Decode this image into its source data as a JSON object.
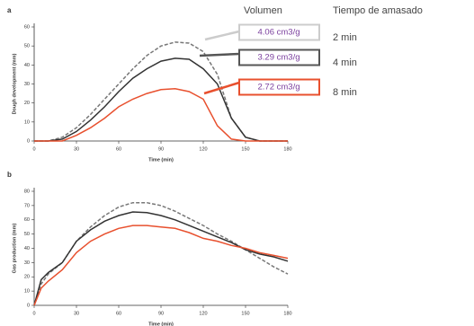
{
  "chart_data": [
    {
      "type": "line",
      "panel_label": "a",
      "y_label": "Dough development (mm)",
      "x_label": "Time (min)",
      "x": [
        0,
        5,
        10,
        20,
        30,
        40,
        50,
        60,
        70,
        80,
        90,
        100,
        110,
        120,
        130,
        140,
        150,
        160,
        170,
        180
      ],
      "xlim": [
        0,
        180
      ],
      "xticks": [
        0,
        30,
        60,
        90,
        120,
        150,
        180
      ],
      "ylim": [
        0,
        60
      ],
      "yticks": [
        0,
        10,
        20,
        30,
        40,
        50,
        60
      ],
      "series": [
        {
          "color": "#777777",
          "dashed": true,
          "values": [
            0,
            0,
            0,
            2,
            7,
            14,
            22,
            30,
            38,
            45,
            50,
            52,
            51.5,
            47,
            35,
            12,
            2,
            0,
            0,
            0
          ]
        },
        {
          "color": "#333333",
          "dashed": false,
          "values": [
            0,
            0,
            0,
            1,
            5,
            11,
            18,
            26,
            33,
            38,
            42,
            43.5,
            43,
            38,
            30,
            12,
            2,
            0,
            0,
            0
          ]
        },
        {
          "color": "#e8502e",
          "dashed": false,
          "values": [
            0,
            0,
            0,
            0,
            3,
            7,
            12,
            18,
            22,
            25,
            27,
            27.5,
            26,
            22,
            8,
            1,
            0,
            0,
            0,
            0
          ]
        }
      ]
    },
    {
      "type": "line",
      "panel_label": "b",
      "y_label": "Gas production (mm)",
      "x_label": "Time (min)",
      "x": [
        0,
        5,
        10,
        20,
        30,
        40,
        50,
        60,
        70,
        80,
        90,
        100,
        110,
        120,
        130,
        140,
        150,
        160,
        170,
        180
      ],
      "xlim": [
        0,
        180
      ],
      "xticks": [
        0,
        30,
        60,
        90,
        120,
        150,
        180
      ],
      "ylim": [
        0,
        80
      ],
      "yticks": [
        0,
        10,
        20,
        30,
        40,
        50,
        60,
        70,
        80
      ],
      "series": [
        {
          "color": "#777777",
          "dashed": true,
          "values": [
            0,
            15,
            22,
            30,
            45,
            55,
            63,
            69,
            72,
            72,
            70,
            66,
            61,
            56,
            50,
            45,
            39,
            33,
            27,
            22
          ]
        },
        {
          "color": "#333333",
          "dashed": false,
          "values": [
            0,
            18,
            23,
            30,
            45,
            53,
            59,
            63,
            65.5,
            65,
            63,
            60,
            56,
            52,
            48,
            44,
            39,
            36,
            34,
            31
          ]
        },
        {
          "color": "#e8502e",
          "dashed": false,
          "values": [
            0,
            12,
            17,
            25,
            37,
            45,
            50,
            54,
            56,
            56,
            55,
            54,
            51,
            47,
            45,
            42,
            40,
            37,
            35,
            33
          ]
        }
      ]
    }
  ],
  "legend": {
    "headers": [
      "Volumen",
      "Tiempo de amasado"
    ],
    "rows": [
      {
        "volume": "4.06 cm3/g",
        "time": "2 min",
        "color": "#cccccc"
      },
      {
        "volume": "3.29 cm3/g",
        "time": "4 min",
        "color": "#555555"
      },
      {
        "volume": "2.72 cm3/g",
        "time": "8 min",
        "color": "#e8502e"
      }
    ]
  }
}
